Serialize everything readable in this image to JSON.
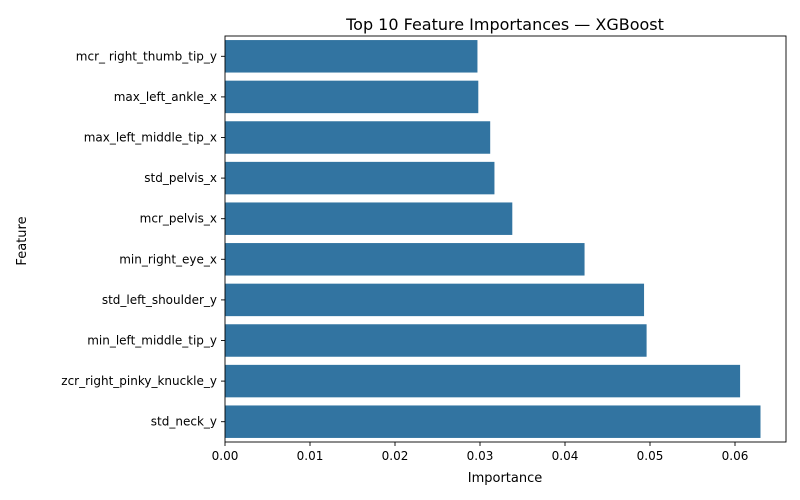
{
  "chart_data": {
    "type": "bar",
    "orientation": "horizontal",
    "title": "Top 10 Feature Importances — XGBoost",
    "xlabel": "Importance",
    "ylabel": "Feature",
    "xlim": [
      0,
      0.066
    ],
    "xticks": [
      "0.00",
      "0.01",
      "0.02",
      "0.03",
      "0.04",
      "0.05",
      "0.06"
    ],
    "grid": false,
    "bar_color": "#3274a1",
    "categories": [
      "mcr_ right_thumb_tip_y",
      "max_left_ankle_x",
      "max_left_middle_tip_x",
      "std_pelvis_x",
      "mcr_pelvis_x",
      "min_right_eye_x",
      "std_left_shoulder_y",
      "min_left_middle_tip_y",
      "zcr_right_pinky_knuckle_y",
      "std_neck_y"
    ],
    "values": [
      0.0297,
      0.0298,
      0.0312,
      0.0317,
      0.0338,
      0.0423,
      0.0493,
      0.0496,
      0.0606,
      0.063
    ]
  }
}
